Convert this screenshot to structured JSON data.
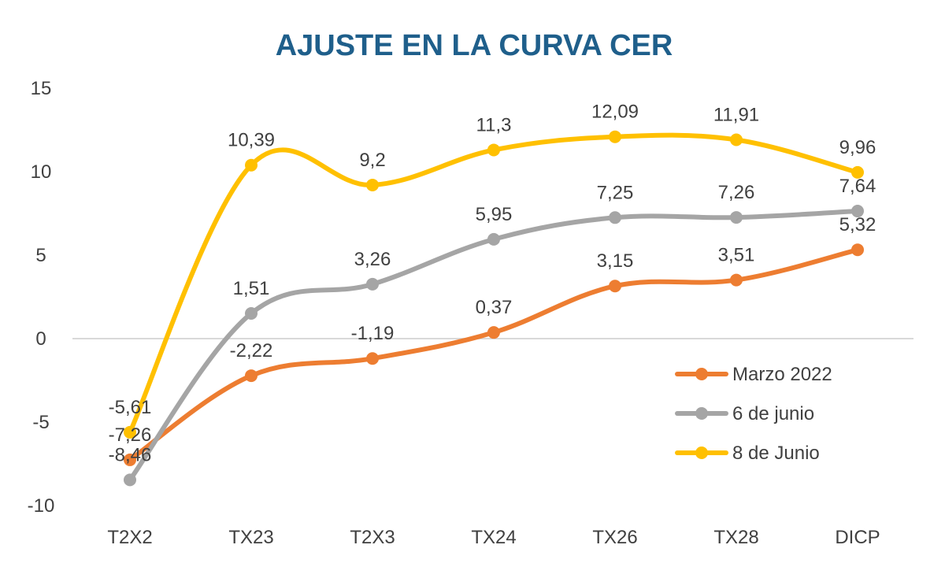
{
  "chart_data": {
    "type": "line",
    "title": "AJUSTE EN LA CURVA CER",
    "xlabel": "",
    "ylabel": "",
    "categories": [
      "T2X2",
      "TX23",
      "T2X3",
      "TX24",
      "TX26",
      "TX28",
      "DICP"
    ],
    "ylim": [
      -10,
      15
    ],
    "yticks": [
      "-10",
      "-5",
      "0",
      "5",
      "10",
      "15"
    ],
    "grid": false,
    "legend_position": "bottom-right",
    "series": [
      {
        "name": "Marzo 2022",
        "color": "#ed7d31",
        "values": [
          -7.26,
          -2.22,
          -1.19,
          0.37,
          3.15,
          3.51,
          5.32
        ],
        "labels": [
          "-7,26",
          "-2,22",
          "-1,19",
          "0,37",
          "3,15",
          "3,51",
          "5,32"
        ]
      },
      {
        "name": "6 de junio",
        "color": "#a5a5a5",
        "values": [
          -8.46,
          1.51,
          3.26,
          5.95,
          7.25,
          7.26,
          7.64
        ],
        "labels": [
          "-8,46",
          "1,51",
          "3,26",
          "5,95",
          "7,25",
          "7,26",
          "7,64"
        ]
      },
      {
        "name": "8 de Junio",
        "color": "#ffc000",
        "values": [
          -5.61,
          10.39,
          9.2,
          11.3,
          12.09,
          11.91,
          9.96
        ],
        "labels": [
          "-5,61",
          "10,39",
          "9,2",
          "11,3",
          "12,09",
          "11,91",
          "9,96"
        ]
      }
    ]
  }
}
